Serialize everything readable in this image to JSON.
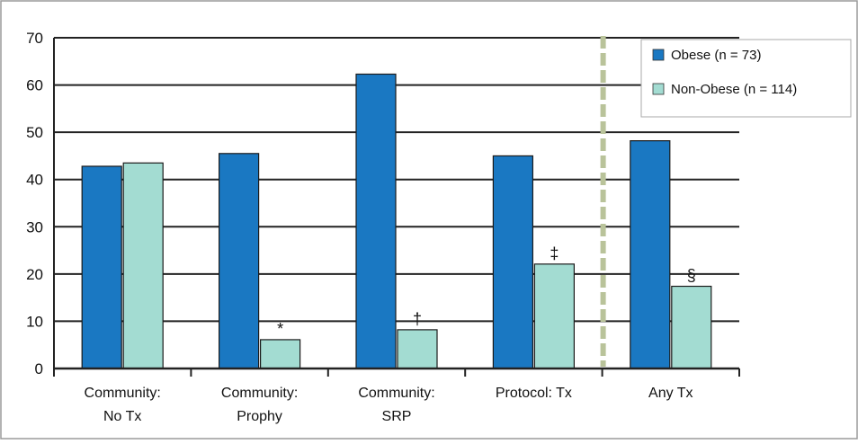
{
  "chart_data": {
    "type": "bar",
    "categories": [
      [
        "Community:",
        "No Tx"
      ],
      [
        "Community:",
        "Prophy"
      ],
      [
        "Community:",
        "SRP"
      ],
      [
        "Protocol: Tx"
      ],
      [
        "Any Tx"
      ]
    ],
    "series": [
      {
        "name": "Obese (n = 73)",
        "color": "#1a78c2",
        "values": [
          42.8,
          45.5,
          62.3,
          45.0,
          48.2
        ]
      },
      {
        "name": "Non-Obese (n = 114)",
        "color": "#a3dcd2",
        "values": [
          43.5,
          6.1,
          8.2,
          22.1,
          17.4
        ]
      }
    ],
    "annotations": [
      "",
      "*",
      "†",
      "‡",
      "§"
    ],
    "ylim": [
      0,
      70
    ],
    "yticks": [
      0,
      10,
      20,
      30,
      40,
      50,
      60,
      70
    ],
    "grid": true,
    "legend_position": "top-right",
    "divider_before_category": 4
  }
}
